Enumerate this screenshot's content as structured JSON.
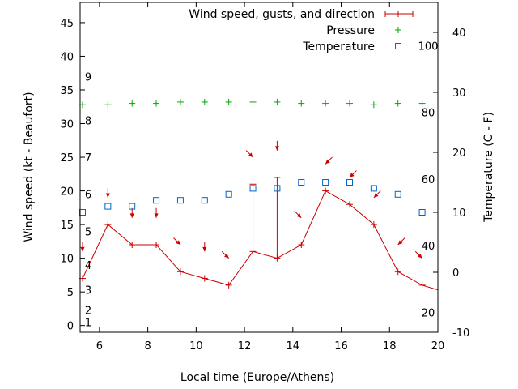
{
  "chart_data": {
    "type": "line",
    "xlabel": "Local time (Europe/Athens)",
    "ylabel": "Wind speed (kt - Beaufort)",
    "y2label": "Temperature (C - F)",
    "x_ticks": [
      6,
      8,
      10,
      12,
      14,
      16,
      18,
      20
    ],
    "y_ticks": [
      0,
      5,
      10,
      15,
      20,
      25,
      30,
      35,
      40,
      45
    ],
    "y2_ticks": [
      -10,
      0,
      10,
      20,
      30,
      40
    ],
    "beaufort_labels": [
      "1",
      "2",
      "3",
      "4",
      "5",
      "6",
      "7",
      "8",
      "9"
    ],
    "fahrenheit_labels": [
      "20",
      "40",
      "60",
      "80",
      "100"
    ],
    "xlim": [
      5.2,
      20
    ],
    "ylim": [
      -1,
      48
    ],
    "y2lim": [
      -10,
      45
    ],
    "grid": false,
    "legend_position": "top-right",
    "series": [
      {
        "name": "Wind speed, gusts, and direction",
        "color": "#cc0000",
        "x": [
          5.3,
          6.35,
          7.35,
          8.35,
          9.35,
          10.35,
          11.35,
          12.35,
          13.35,
          14.35,
          15.35,
          16.35,
          17.35,
          18.35,
          19.35,
          20
        ],
        "values": [
          7,
          15,
          12,
          12,
          8,
          7,
          6,
          11,
          10,
          12,
          20,
          18,
          15,
          8,
          6,
          5.3
        ],
        "gust_x": [
          12.35,
          13.35
        ],
        "gust_high": [
          21,
          22
        ],
        "arrow_x": [
          5.3,
          6.35,
          7.35,
          8.35,
          9.35,
          10.35,
          11.35,
          12.35,
          13.35,
          14.35,
          15.35,
          16.35,
          17.35,
          18.35,
          19.35
        ],
        "arrow_y": [
          11,
          19,
          16,
          16,
          12,
          11,
          10,
          25,
          26,
          16,
          24,
          22,
          19,
          12,
          10
        ],
        "arrow_dir": [
          "N",
          "N",
          "N",
          "N",
          "NW",
          "N",
          "NW",
          "NW",
          "N",
          "NW",
          "NE",
          "NE",
          "NE",
          "NE",
          "NW"
        ]
      },
      {
        "name": "Pressure",
        "color": "#00aa00",
        "axis": "left",
        "x": [
          5.3,
          6.35,
          7.35,
          8.35,
          9.35,
          10.35,
          11.35,
          12.35,
          13.35,
          14.35,
          15.35,
          16.35,
          17.35,
          18.35,
          19.35
        ],
        "values": [
          32.8,
          32.8,
          33,
          33,
          33.2,
          33.2,
          33.2,
          33.2,
          33.2,
          33,
          33,
          33,
          32.8,
          33,
          33
        ]
      },
      {
        "name": "Temperature",
        "color": "#0066cc",
        "axis": "right",
        "x": [
          5.3,
          6.35,
          7.35,
          8.35,
          9.35,
          10.35,
          11.35,
          12.35,
          13.35,
          14.35,
          15.35,
          16.35,
          17.35,
          18.35,
          19.35
        ],
        "values": [
          10,
          11,
          11,
          12,
          12,
          12,
          13,
          14,
          14,
          15,
          15,
          15,
          14,
          13,
          10
        ]
      }
    ]
  }
}
